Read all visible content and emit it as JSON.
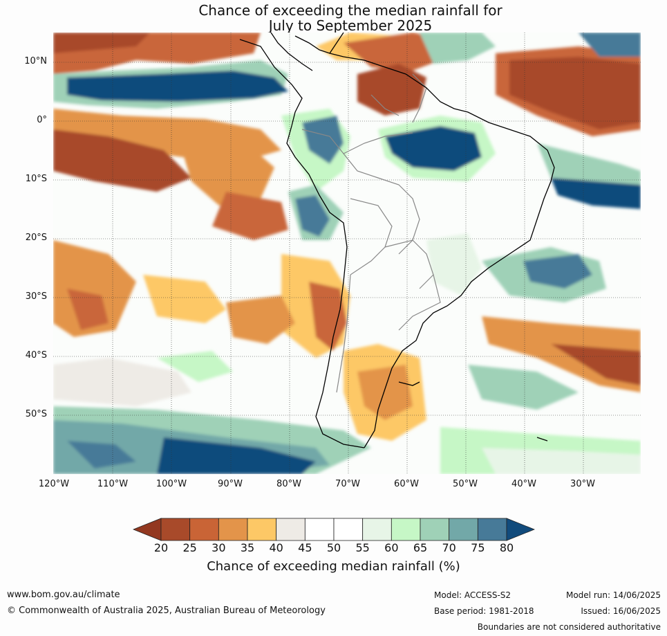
{
  "title_line1": "Chance of exceeding the median rainfall for",
  "title_line2": "July to September 2025",
  "map": {
    "lat_labels": [
      "10°N",
      "0°",
      "10°S",
      "20°S",
      "30°S",
      "40°S",
      "50°S"
    ],
    "lon_labels": [
      "120°W",
      "110°W",
      "100°W",
      "90°W",
      "80°W",
      "70°W",
      "60°W",
      "50°W",
      "40°W",
      "30°W"
    ]
  },
  "colorbar": {
    "ticks": [
      "20",
      "25",
      "30",
      "35",
      "40",
      "45",
      "50",
      "55",
      "60",
      "65",
      "70",
      "75",
      "80"
    ],
    "colors": [
      "#a84a2a",
      "#c96436",
      "#e3944a",
      "#fdc866",
      "#eeebe6",
      "#ffffff",
      "#ffffff",
      "#e7f5e7",
      "#c6f7c6",
      "#9fd1b7",
      "#72a8a8",
      "#477a98"
    ],
    "under_color": "#933820",
    "over_color": "#114b7c",
    "label": "Chance of exceeding median rainfall (%)"
  },
  "footer": {
    "website": "www.bom.gov.au/climate",
    "copyright": "© Commonwealth of Australia 2025, Australian Bureau of Meteorology",
    "model": "Model: ACCESS-S2",
    "base_period": "Base period: 1981-2018",
    "model_run": "Model run: 14/06/2025",
    "issued": "Issued: 16/06/2025",
    "disclaimer": "Boundaries are not considered authoritative"
  }
}
